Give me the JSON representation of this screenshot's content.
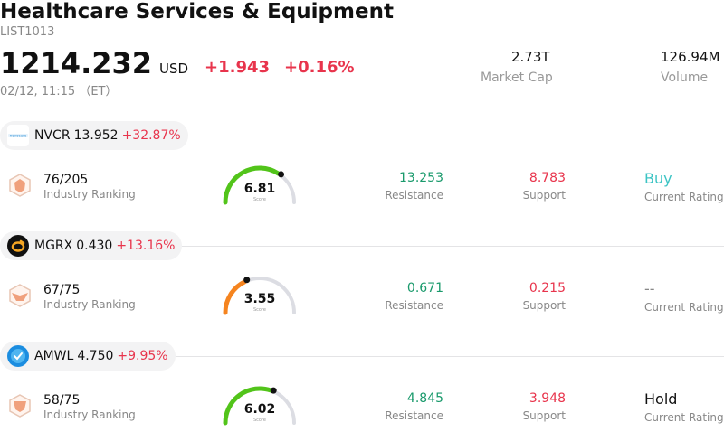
{
  "header": {
    "title": "Healthcare Services & Equipment",
    "code": "LIST1013",
    "price": "1214.232",
    "currency": "USD",
    "change": "+1.943",
    "change_pct": "+0.16%",
    "time": "02/12, 11:15 （ET）",
    "market_cap_value": "2.73T",
    "market_cap_label": "Market Cap",
    "volume_value": "126.94M",
    "volume_label": "Volume"
  },
  "colors": {
    "up": "#e8344c",
    "resistance": "#1a9a6c",
    "gauge_green": "#52c41a",
    "gauge_orange": "#f5841f",
    "gauge_track": "#dcdde3",
    "buy": "#3cc4c4"
  },
  "stocks": [
    {
      "symbol": "NVCR",
      "price": "13.952",
      "change_pct": "+32.87%",
      "logo": "novocure-logo",
      "rank": "76/205",
      "rank_label": "Industry Ranking",
      "score": "6.81",
      "score_value": 6.81,
      "score_label": "Score",
      "resistance": "13.253",
      "resistance_label": "Resistance",
      "support": "8.783",
      "support_label": "Support",
      "rating": "Buy",
      "rating_label": "Current Rating"
    },
    {
      "symbol": "MGRX",
      "price": "0.430",
      "change_pct": "+13.16%",
      "logo": "mgrx-logo",
      "rank": "67/75",
      "rank_label": "Industry Ranking",
      "score": "3.55",
      "score_value": 3.55,
      "score_label": "Score",
      "resistance": "0.671",
      "resistance_label": "Resistance",
      "support": "0.215",
      "support_label": "Support",
      "rating": "--",
      "rating_label": "Current Rating"
    },
    {
      "symbol": "AMWL",
      "price": "4.750",
      "change_pct": "+9.95%",
      "logo": "amwell-logo",
      "rank": "58/75",
      "rank_label": "Industry Ranking",
      "score": "6.02",
      "score_value": 6.02,
      "score_label": "Score",
      "resistance": "4.845",
      "resistance_label": "Resistance",
      "support": "3.948",
      "support_label": "Support",
      "rating": "Hold",
      "rating_label": "Current Rating"
    }
  ]
}
